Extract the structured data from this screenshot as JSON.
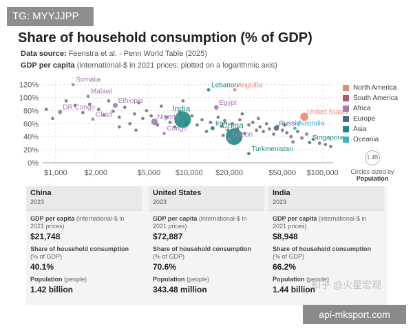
{
  "watermarks": {
    "top": "TG: MYYJJPP",
    "middle": "知乎 @火星宏观",
    "bottom": "api-mksport.com"
  },
  "header": {
    "title": "Share of household consumption (% of GDP)",
    "source_label": "Data source:",
    "source_text": "Feenstra et al. - Penn World Table (2025)",
    "subtitle_label": "GDP per capita",
    "subtitle_text": "(international-$ in 2021 prices; plotted on a logarithmic axis)"
  },
  "colors": {
    "North America": "#e48a7b",
    "South America": "#b0576b",
    "Africa": "#a879b3",
    "Europe": "#4c6b8c",
    "Asia": "#1d8a82",
    "Oceania": "#3fb1c6",
    "other": "#7a6a78"
  },
  "legend": {
    "items": [
      "North America",
      "South America",
      "Africa",
      "Europe",
      "Asia",
      "Oceania"
    ],
    "size_circle": "1.4B",
    "size_label": "Circles sized by",
    "size_label_bold": "Population"
  },
  "chart_data": {
    "type": "scatter",
    "xscale": "log",
    "xlim": [
      800,
      120000
    ],
    "ylim": [
      0,
      125
    ],
    "xticks": [
      1000,
      2000,
      5000,
      10000,
      20000,
      50000,
      100000
    ],
    "xtick_labels": [
      "$1,000",
      "$2,000",
      "$5,000",
      "$10,000",
      "$20,000",
      "$50,000",
      "$100,000"
    ],
    "yticks": [
      0,
      20,
      40,
      60,
      80,
      100,
      120
    ],
    "ytick_labels": [
      "0%",
      "20%",
      "40%",
      "60%",
      "80%",
      "100%",
      "120%"
    ],
    "grid": true,
    "labeled_points": [
      {
        "label": "Somalia",
        "x": 1350,
        "y": 120,
        "region": "Africa",
        "pop": 18
      },
      {
        "label": "Malawi",
        "x": 1750,
        "y": 102,
        "region": "Africa",
        "pop": 20
      },
      {
        "label": "DR Congo",
        "x": 1080,
        "y": 78,
        "region": "Africa",
        "pop": 100
      },
      {
        "label": "Ethiopia",
        "x": 2800,
        "y": 88,
        "region": "Africa",
        "pop": 126
      },
      {
        "label": "Chad",
        "x": 1900,
        "y": 67,
        "region": "Africa",
        "pop": 18
      },
      {
        "label": "Nigeria",
        "x": 5500,
        "y": 63,
        "region": "Africa",
        "pop": 220
      },
      {
        "label": "Congo",
        "x": 6500,
        "y": 45,
        "region": "Africa",
        "pop": 6
      },
      {
        "label": "India",
        "x": 8948,
        "y": 66.2,
        "region": "Asia",
        "pop": 1440
      },
      {
        "label": "Lebanon",
        "x": 14000,
        "y": 112,
        "region": "Asia",
        "pop": 5
      },
      {
        "label": "Anguilla",
        "x": 22000,
        "y": 112,
        "region": "North America",
        "pop": 0.015
      },
      {
        "label": "Egypt",
        "x": 16000,
        "y": 85,
        "region": "Africa",
        "pop": 110
      },
      {
        "label": "Iran",
        "x": 15000,
        "y": 53,
        "region": "Asia",
        "pop": 89
      },
      {
        "label": "China",
        "x": 21748,
        "y": 40.1,
        "region": "Asia",
        "pop": 1420
      },
      {
        "label": "United States",
        "x": 72887,
        "y": 70.6,
        "region": "North America",
        "pop": 343
      },
      {
        "label": "Russia",
        "x": 45000,
        "y": 53,
        "region": "Europe",
        "pop": 144
      },
      {
        "label": "Australia",
        "x": 62000,
        "y": 53,
        "region": "Oceania",
        "pop": 26
      },
      {
        "label": "Gabon",
        "x": 20000,
        "y": 36,
        "region": "Africa",
        "pop": 2.4
      },
      {
        "label": "Singapore",
        "x": 80000,
        "y": 31,
        "region": "Asia",
        "pop": 5.9
      },
      {
        "label": "Turkmenistan",
        "x": 28000,
        "y": 14,
        "region": "Asia",
        "pop": 7
      }
    ],
    "other_points": [
      [
        850,
        82
      ],
      [
        950,
        68
      ],
      [
        1200,
        95
      ],
      [
        1400,
        88
      ],
      [
        1600,
        77
      ],
      [
        1800,
        90
      ],
      [
        2100,
        82
      ],
      [
        2300,
        73
      ],
      [
        2500,
        95
      ],
      [
        2700,
        79
      ],
      [
        3000,
        70
      ],
      [
        3300,
        85
      ],
      [
        3600,
        60
      ],
      [
        3900,
        75
      ],
      [
        4200,
        92
      ],
      [
        4500,
        68
      ],
      [
        4800,
        80
      ],
      [
        5200,
        72
      ],
      [
        5800,
        58
      ],
      [
        6200,
        87
      ],
      [
        6800,
        70
      ],
      [
        7200,
        62
      ],
      [
        7800,
        55
      ],
      [
        8500,
        78
      ],
      [
        9500,
        60
      ],
      [
        10500,
        72
      ],
      [
        11500,
        58
      ],
      [
        12500,
        66
      ],
      [
        13500,
        48
      ],
      [
        14500,
        62
      ],
      [
        16500,
        70
      ],
      [
        17500,
        56
      ],
      [
        18500,
        65
      ],
      [
        19500,
        50
      ],
      [
        21000,
        60
      ],
      [
        23000,
        52
      ],
      [
        24000,
        66
      ],
      [
        26000,
        45
      ],
      [
        28000,
        58
      ],
      [
        30000,
        62
      ],
      [
        32000,
        50
      ],
      [
        34000,
        55
      ],
      [
        36000,
        48
      ],
      [
        38000,
        60
      ],
      [
        40000,
        52
      ],
      [
        43000,
        44
      ],
      [
        46000,
        56
      ],
      [
        50000,
        50
      ],
      [
        54000,
        46
      ],
      [
        58000,
        40
      ],
      [
        65000,
        48
      ],
      [
        70000,
        38
      ],
      [
        76000,
        44
      ],
      [
        85000,
        36
      ],
      [
        95000,
        30
      ],
      [
        105000,
        28
      ],
      [
        115000,
        25
      ],
      [
        9000,
        95
      ],
      [
        4000,
        50
      ],
      [
        3000,
        55
      ],
      [
        25000,
        75
      ],
      [
        33000,
        68
      ],
      [
        60000,
        32
      ],
      [
        52000,
        58
      ],
      [
        18000,
        42
      ]
    ]
  },
  "cards": [
    {
      "country": "China",
      "year": "2023",
      "gdp_label": "GDP per capita",
      "gdp_unit": "(international-$ in 2021 prices)",
      "gdp_value": "$21,748",
      "share_label": "Share of household consumption",
      "share_unit": "(% of GDP)",
      "share_value": "40.1%",
      "pop_label": "Population",
      "pop_unit": "(people)",
      "pop_value": "1.42 billion"
    },
    {
      "country": "United States",
      "year": "2023",
      "gdp_label": "GDP per capita",
      "gdp_unit": "(international-$ in 2021 prices)",
      "gdp_value": "$72,887",
      "share_label": "Share of household consumption",
      "share_unit": "(% of GDP)",
      "share_value": "70.6%",
      "pop_label": "Population",
      "pop_unit": "(people)",
      "pop_value": "343.48 million"
    },
    {
      "country": "India",
      "year": "2023",
      "gdp_label": "GDP per capita",
      "gdp_unit": "(international-$ in 2021 prices)",
      "gdp_value": "$8,948",
      "share_label": "Share of household consumption",
      "share_unit": "(% of GDP)",
      "share_value": "66.2%",
      "pop_label": "Population",
      "pop_unit": "(people)",
      "pop_value": "1.44 billion"
    }
  ]
}
